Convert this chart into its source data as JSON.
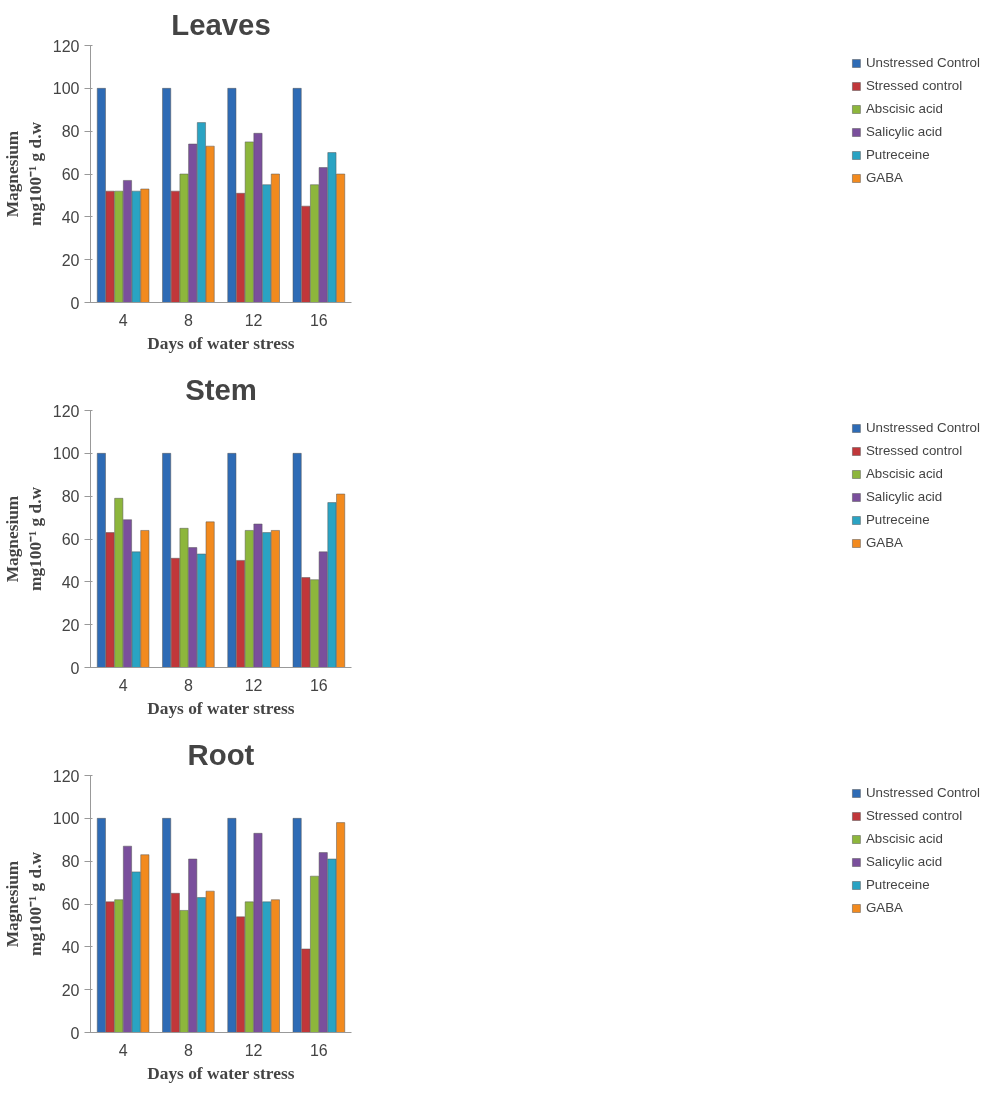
{
  "chart_data": [
    {
      "type": "bar",
      "title": "Leaves",
      "xlabel": "Days of water stress",
      "ylabel": "Magnesium\nmg100⁻¹ g d.w",
      "categories": [
        "4",
        "8",
        "12",
        "16"
      ],
      "ylim": [
        0,
        120
      ],
      "yticks": [
        0,
        20,
        40,
        60,
        80,
        100,
        120
      ],
      "grid": false,
      "legend": "right",
      "series": [
        {
          "name": "Unstressed Control",
          "color": "#2e6bb5",
          "values": [
            100,
            100,
            100,
            100
          ]
        },
        {
          "name": "Stressed control",
          "color": "#c0373a",
          "values": [
            52,
            52,
            51,
            45
          ]
        },
        {
          "name": "Abscisic acid",
          "color": "#8db63c",
          "values": [
            52,
            60,
            75,
            55
          ]
        },
        {
          "name": "Salicylic acid",
          "color": "#7a4f9c",
          "values": [
            57,
            74,
            79,
            63
          ]
        },
        {
          "name": "Putreceine",
          "color": "#2aa3c3",
          "values": [
            52,
            84,
            55,
            70
          ]
        },
        {
          "name": "GABA",
          "color": "#f28a1e",
          "values": [
            53,
            73,
            60,
            60
          ]
        }
      ]
    },
    {
      "type": "bar",
      "title": "Stem",
      "xlabel": "Days of water stress",
      "ylabel": "Magnesium\nmg100⁻¹ g d.w",
      "categories": [
        "4",
        "8",
        "12",
        "16"
      ],
      "ylim": [
        0,
        120
      ],
      "yticks": [
        0,
        20,
        40,
        60,
        80,
        100,
        120
      ],
      "grid": false,
      "legend": "right",
      "series": [
        {
          "name": "Unstressed Control",
          "color": "#2e6bb5",
          "values": [
            100,
            100,
            100,
            100
          ]
        },
        {
          "name": "Stressed control",
          "color": "#c0373a",
          "values": [
            63,
            51,
            50,
            42
          ]
        },
        {
          "name": "Abscisic acid",
          "color": "#8db63c",
          "values": [
            79,
            65,
            64,
            41
          ]
        },
        {
          "name": "Salicylic acid",
          "color": "#7a4f9c",
          "values": [
            69,
            56,
            67,
            54
          ]
        },
        {
          "name": "Putreceine",
          "color": "#2aa3c3",
          "values": [
            54,
            53,
            63,
            77
          ]
        },
        {
          "name": "GABA",
          "color": "#f28a1e",
          "values": [
            64,
            68,
            64,
            81
          ]
        }
      ]
    },
    {
      "type": "bar",
      "title": "Root",
      "xlabel": "Days of water stress",
      "ylabel": "Magnesium\nmg100⁻¹ g d.w",
      "categories": [
        "4",
        "8",
        "12",
        "16"
      ],
      "ylim": [
        0,
        120
      ],
      "yticks": [
        0,
        20,
        40,
        60,
        80,
        100,
        120
      ],
      "grid": false,
      "legend": "right",
      "series": [
        {
          "name": "Unstressed Control",
          "color": "#2e6bb5",
          "values": [
            100,
            100,
            100,
            100
          ]
        },
        {
          "name": "Stressed control",
          "color": "#c0373a",
          "values": [
            61,
            65,
            54,
            39
          ]
        },
        {
          "name": "Abscisic acid",
          "color": "#8db63c",
          "values": [
            62,
            57,
            61,
            73
          ]
        },
        {
          "name": "Salicylic acid",
          "color": "#7a4f9c",
          "values": [
            87,
            81,
            93,
            84
          ]
        },
        {
          "name": "Putreceine",
          "color": "#2aa3c3",
          "values": [
            75,
            63,
            61,
            81
          ]
        },
        {
          "name": "GABA",
          "color": "#f28a1e",
          "values": [
            83,
            66,
            62,
            98
          ]
        }
      ]
    }
  ]
}
